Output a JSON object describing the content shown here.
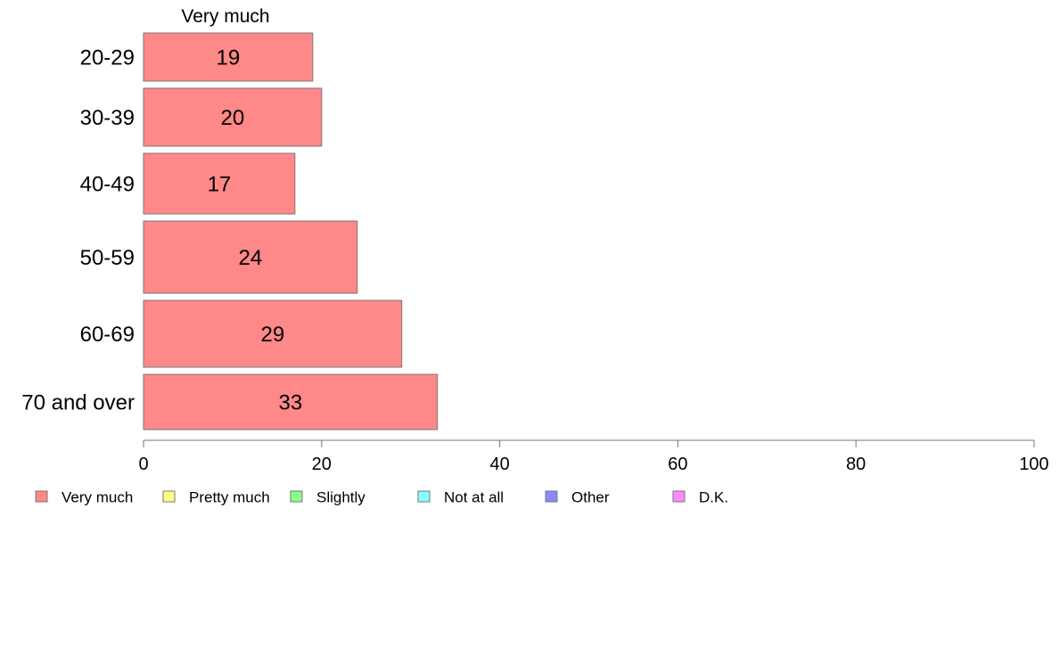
{
  "chart_data": {
    "type": "bar",
    "orientation": "horizontal",
    "categories": [
      "20-29",
      "30-39",
      "40-49",
      "50-59",
      "60-69",
      "70 and over"
    ],
    "series": [
      {
        "name": "Very much",
        "values": [
          19,
          20,
          17,
          24,
          29,
          33
        ],
        "color": "#ff8888"
      }
    ],
    "series_header": "Very much",
    "xlim": [
      0,
      100
    ],
    "xticks": [
      0,
      20,
      40,
      60,
      80,
      100
    ],
    "grid": false,
    "legend_position": "bottom",
    "legend": [
      {
        "label": "Very much",
        "color": "#ff8888"
      },
      {
        "label": "Pretty much",
        "color": "#ffff88"
      },
      {
        "label": "Slightly",
        "color": "#88ff88"
      },
      {
        "label": "Not at all",
        "color": "#88ffff"
      },
      {
        "label": "Other",
        "color": "#8888ff"
      },
      {
        "label": "D.K.",
        "color": "#ff88ff"
      }
    ]
  }
}
